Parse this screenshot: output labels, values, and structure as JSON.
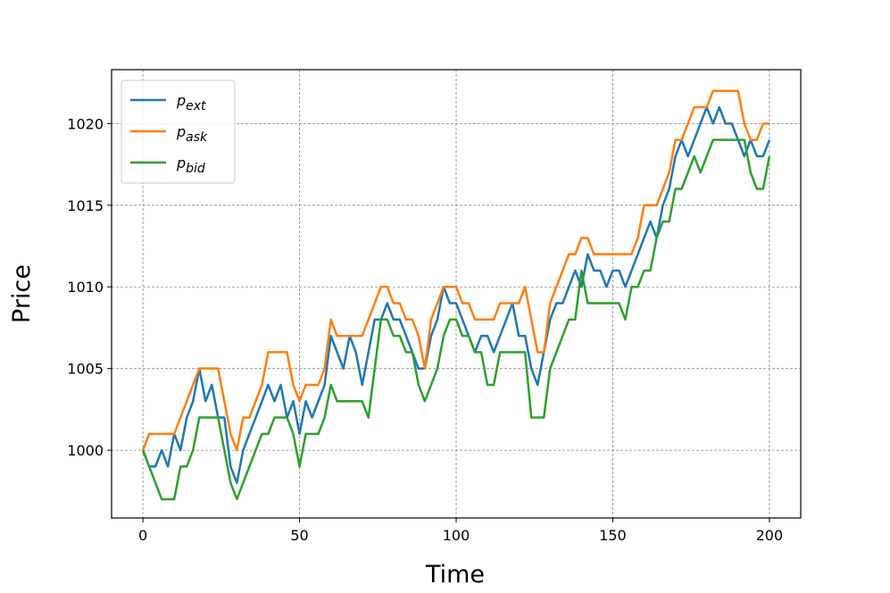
{
  "chart_data": {
    "type": "line",
    "xlabel": "Time",
    "ylabel": "Price",
    "x": [
      0,
      2,
      4,
      6,
      8,
      10,
      12,
      14,
      16,
      18,
      20,
      22,
      24,
      26,
      28,
      30,
      32,
      34,
      36,
      38,
      40,
      42,
      44,
      46,
      48,
      50,
      52,
      54,
      56,
      58,
      60,
      62,
      64,
      66,
      68,
      70,
      72,
      74,
      76,
      78,
      80,
      82,
      84,
      86,
      88,
      90,
      92,
      94,
      96,
      98,
      100,
      102,
      104,
      106,
      108,
      110,
      112,
      114,
      116,
      118,
      120,
      122,
      124,
      126,
      128,
      130,
      132,
      134,
      136,
      138,
      140,
      142,
      144,
      146,
      148,
      150,
      152,
      154,
      156,
      158,
      160,
      162,
      164,
      166,
      168,
      170,
      172,
      174,
      176,
      178,
      180,
      182,
      184,
      186,
      188,
      190,
      192,
      194,
      196,
      198,
      200
    ],
    "series": [
      {
        "name": "p_ext",
        "color": "#1f77b4",
        "values": [
          1000,
          999,
          999,
          1000,
          999,
          1001,
          1000,
          1002,
          1003,
          1005,
          1003,
          1004,
          1002,
          1002,
          999,
          998,
          1000,
          1001,
          1002,
          1003,
          1004,
          1003,
          1004,
          1002,
          1003,
          1001,
          1003,
          1002,
          1003,
          1004,
          1007,
          1006,
          1005,
          1007,
          1006,
          1004,
          1006,
          1008,
          1008,
          1009,
          1008,
          1008,
          1007,
          1006,
          1005,
          1005,
          1007,
          1008,
          1010,
          1009,
          1009,
          1008,
          1007,
          1006,
          1007,
          1007,
          1006,
          1007,
          1008,
          1009,
          1007,
          1007,
          1005,
          1004,
          1006,
          1008,
          1009,
          1009,
          1010,
          1011,
          1010,
          1012,
          1011,
          1011,
          1010,
          1011,
          1011,
          1010,
          1011,
          1012,
          1013,
          1014,
          1013,
          1015,
          1016,
          1018,
          1019,
          1018,
          1019,
          1020,
          1021,
          1020,
          1021,
          1020,
          1020,
          1019,
          1018,
          1019,
          1018,
          1018,
          1019
        ]
      },
      {
        "name": "p_ask",
        "color": "#ff7f0e",
        "values": [
          1000,
          1001,
          1001,
          1001,
          1001,
          1001,
          1002,
          1003,
          1004,
          1005,
          1005,
          1005,
          1005,
          1003,
          1001,
          1000,
          1002,
          1002,
          1003,
          1004,
          1006,
          1006,
          1006,
          1006,
          1004,
          1003,
          1004,
          1004,
          1004,
          1005,
          1008,
          1007,
          1007,
          1007,
          1007,
          1007,
          1008,
          1009,
          1010,
          1010,
          1009,
          1009,
          1008,
          1008,
          1007,
          1005,
          1008,
          1009,
          1010,
          1010,
          1010,
          1009,
          1009,
          1008,
          1008,
          1008,
          1008,
          1009,
          1009,
          1009,
          1009,
          1010,
          1008,
          1006,
          1006,
          1009,
          1010,
          1011,
          1012,
          1012,
          1013,
          1013,
          1012,
          1012,
          1012,
          1012,
          1012,
          1012,
          1012,
          1013,
          1015,
          1015,
          1015,
          1016,
          1017,
          1019,
          1019,
          1020,
          1021,
          1021,
          1021,
          1022,
          1022,
          1022,
          1022,
          1022,
          1020,
          1019,
          1019,
          1020,
          1020
        ]
      },
      {
        "name": "p_bid",
        "color": "#2ca02c",
        "values": [
          1000,
          999,
          998,
          997,
          997,
          997,
          999,
          999,
          1000,
          1002,
          1002,
          1002,
          1002,
          1000,
          998,
          997,
          998,
          999,
          1000,
          1001,
          1001,
          1002,
          1002,
          1002,
          1001,
          999,
          1001,
          1001,
          1001,
          1002,
          1004,
          1003,
          1003,
          1003,
          1003,
          1003,
          1002,
          1005,
          1008,
          1008,
          1007,
          1007,
          1006,
          1006,
          1004,
          1003,
          1004,
          1005,
          1007,
          1008,
          1008,
          1007,
          1007,
          1006,
          1006,
          1004,
          1004,
          1006,
          1006,
          1006,
          1006,
          1006,
          1002,
          1002,
          1002,
          1005,
          1006,
          1007,
          1008,
          1008,
          1011,
          1009,
          1009,
          1009,
          1009,
          1009,
          1009,
          1008,
          1010,
          1010,
          1011,
          1011,
          1013,
          1014,
          1014,
          1016,
          1016,
          1017,
          1018,
          1017,
          1018,
          1019,
          1019,
          1019,
          1019,
          1019,
          1019,
          1017,
          1016,
          1016,
          1018
        ]
      }
    ],
    "xlim": [
      -10,
      210
    ],
    "xticks": [
      0,
      50,
      100,
      150,
      200
    ],
    "ylim": [
      995.85,
      1023.3
    ],
    "yticks": [
      1000,
      1005,
      1010,
      1015,
      1020
    ],
    "grid": true,
    "legend": "upper left"
  }
}
